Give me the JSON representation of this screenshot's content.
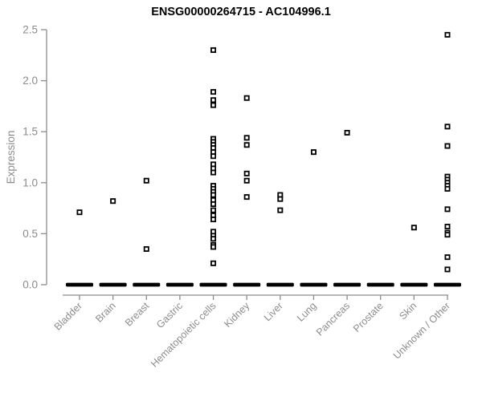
{
  "header": {
    "title": "ENSG00000264715 - AC104996.1"
  },
  "chart_data": {
    "type": "scatter",
    "title": "ENSG00000264715 - AC104996.1",
    "subtitle": "",
    "xlabel": "",
    "ylabel": "Expression",
    "ylim": [
      0,
      2.5
    ],
    "ytick_labels": [
      "0.0",
      "0.5",
      "1.0",
      "1.5",
      "2.0",
      "2.5"
    ],
    "ytick_values": [
      0,
      0.5,
      1,
      1.5,
      2,
      2.5
    ],
    "grid": false,
    "legend": "none",
    "marker": "open-square",
    "colors": {
      "marker_stroke": "#000000",
      "marker_fill": "#ffffff",
      "zero_bar": "#000000",
      "axis": "#8c8c8c",
      "tick_label": "#8c8c8c",
      "title": "#000000"
    },
    "categories": [
      "Bladder",
      "Brain",
      "Breast",
      "Gastric",
      "Hematopoietic cells",
      "Kidney",
      "Liver",
      "Lung",
      "Pancreas",
      "Prostate",
      "Skin",
      "Unknown / Other"
    ],
    "series": [
      {
        "category": "Bladder",
        "values": [
          0.71
        ],
        "zero_cluster": true
      },
      {
        "category": "Brain",
        "values": [
          0.82
        ],
        "zero_cluster": true
      },
      {
        "category": "Breast",
        "values": [
          1.02,
          0.35
        ],
        "zero_cluster": true
      },
      {
        "category": "Gastric",
        "values": [],
        "zero_cluster": true
      },
      {
        "category": "Hematopoietic cells",
        "values": [
          2.3,
          1.89,
          1.81,
          1.76,
          1.43,
          1.4,
          1.37,
          1.34,
          1.3,
          1.26,
          1.18,
          1.14,
          1.1,
          0.97,
          0.94,
          0.91,
          0.88,
          0.83,
          0.79,
          0.73,
          0.68,
          0.64,
          0.52,
          0.48,
          0.45,
          0.39,
          0.37,
          0.21
        ],
        "zero_cluster": true
      },
      {
        "category": "Kidney",
        "values": [
          1.83,
          1.44,
          1.37,
          1.09,
          1.02,
          0.86
        ],
        "zero_cluster": true
      },
      {
        "category": "Liver",
        "values": [
          0.88,
          0.84,
          0.73
        ],
        "zero_cluster": true
      },
      {
        "category": "Lung",
        "values": [
          1.3
        ],
        "zero_cluster": true
      },
      {
        "category": "Pancreas",
        "values": [
          1.49
        ],
        "zero_cluster": true
      },
      {
        "category": "Prostate",
        "values": [],
        "zero_cluster": true
      },
      {
        "category": "Skin",
        "values": [
          0.56
        ],
        "zero_cluster": true
      },
      {
        "category": "Unknown / Other",
        "values": [
          2.45,
          1.55,
          1.36,
          1.06,
          1.03,
          1.0,
          0.97,
          0.94,
          0.74,
          0.57,
          0.51,
          0.49,
          0.27,
          0.15
        ],
        "zero_cluster": true
      }
    ]
  }
}
